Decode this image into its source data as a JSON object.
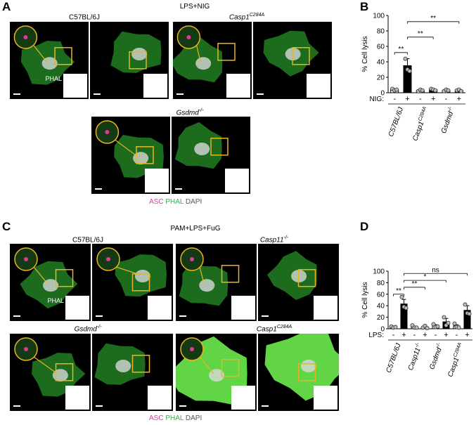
{
  "panels": {
    "a": {
      "label": "A",
      "condition": "LPS+NIG",
      "groups": [
        {
          "title": "C57BL/6J",
          "italic": false,
          "sup": ""
        },
        {
          "title": "Casp1",
          "italic": true,
          "sup": "C284A"
        },
        {
          "title": "Gsdmd",
          "italic": true,
          "sup": "-/-"
        }
      ],
      "phal_label": "PHAL",
      "legend": {
        "asc": "ASC",
        "phal": "PHAL",
        "dapi": "DAPI"
      }
    },
    "b": {
      "label": "B"
    },
    "c": {
      "label": "C",
      "condition": "PAM+LPS+FuG",
      "groups": [
        {
          "title": "C57BL/6J",
          "italic": false,
          "sup": ""
        },
        {
          "title": "Casp11",
          "italic": true,
          "sup": "-/-"
        },
        {
          "title": "Gsdmd",
          "italic": true,
          "sup": "-/-"
        },
        {
          "title": "Casp1",
          "italic": true,
          "sup": "C284A"
        }
      ],
      "phal_label": "PHAL",
      "legend": {
        "asc": "ASC",
        "phal": "PHAL",
        "dapi": "DAPI"
      }
    },
    "d": {
      "label": "D"
    }
  },
  "colors": {
    "cell": "#35c235",
    "cell_bright": "#66e04a",
    "asc": "#e0399b",
    "box": "#e8b520",
    "background": "#000000"
  },
  "chart_data": [
    {
      "type": "bar",
      "panel": "B",
      "ylabel": "% Cell lysis",
      "ylim": [
        0,
        100
      ],
      "yticks": [
        0,
        20,
        40,
        60,
        80,
        100
      ],
      "treatment_label": "NIG:",
      "treatment_values": [
        "-",
        "+",
        "-",
        "+",
        "-",
        "+"
      ],
      "groups": [
        {
          "name": "C57BL/6J",
          "sup": ""
        },
        {
          "name": "Casp1",
          "sup": "C284A"
        },
        {
          "name": "Gsdmd",
          "sup": "-/-"
        }
      ],
      "values": [
        4,
        35,
        3,
        4,
        3,
        3
      ],
      "errors": [
        1,
        9,
        1,
        1,
        1,
        1
      ],
      "filled": [
        false,
        true,
        false,
        true,
        false,
        true
      ],
      "points": [
        [
          5,
          3,
          4
        ],
        [
          44,
          30,
          28
        ],
        [
          2,
          4,
          3
        ],
        [
          5,
          4,
          3
        ],
        [
          2,
          4,
          3
        ],
        [
          3,
          4,
          2
        ]
      ],
      "significance": [
        {
          "from": 0,
          "to": 1,
          "label": "**"
        },
        {
          "from": 1,
          "to": 3,
          "label": "**"
        },
        {
          "from": 1,
          "to": 5,
          "label": "**"
        }
      ]
    },
    {
      "type": "bar",
      "panel": "D",
      "ylabel": "% Cell lysis",
      "ylim": [
        0,
        100
      ],
      "yticks": [
        0,
        20,
        40,
        60,
        80,
        100
      ],
      "treatment_label": "LPS:",
      "treatment_values": [
        "-",
        "+",
        "-",
        "+",
        "-",
        "+",
        "-",
        "+"
      ],
      "groups": [
        {
          "name": "C57BL/6J",
          "sup": ""
        },
        {
          "name": "Casp11",
          "sup": "-/-"
        },
        {
          "name": "Gsdmd",
          "sup": "-/-"
        },
        {
          "name": "Casp1",
          "sup": "C284A"
        }
      ],
      "values": [
        3,
        43,
        3,
        3,
        5,
        12,
        5,
        32
      ],
      "errors": [
        1,
        8,
        1,
        2,
        2,
        6,
        2,
        8
      ],
      "filled": [
        false,
        true,
        false,
        true,
        false,
        true,
        false,
        true
      ],
      "points": [
        [
          4,
          2,
          3
        ],
        [
          55,
          38,
          36
        ],
        [
          6,
          2,
          2
        ],
        [
          2,
          5,
          1
        ],
        [
          8,
          3,
          4
        ],
        [
          20,
          6,
          10
        ],
        [
          9,
          3,
          2
        ],
        [
          42,
          27,
          26
        ]
      ],
      "significance": [
        {
          "from": 0,
          "to": 1,
          "label": "**"
        },
        {
          "from": 1,
          "to": 3,
          "label": "**"
        },
        {
          "from": 1,
          "to": 5,
          "label": "*"
        },
        {
          "from": 1,
          "to": 7,
          "label": "ns"
        }
      ]
    }
  ]
}
